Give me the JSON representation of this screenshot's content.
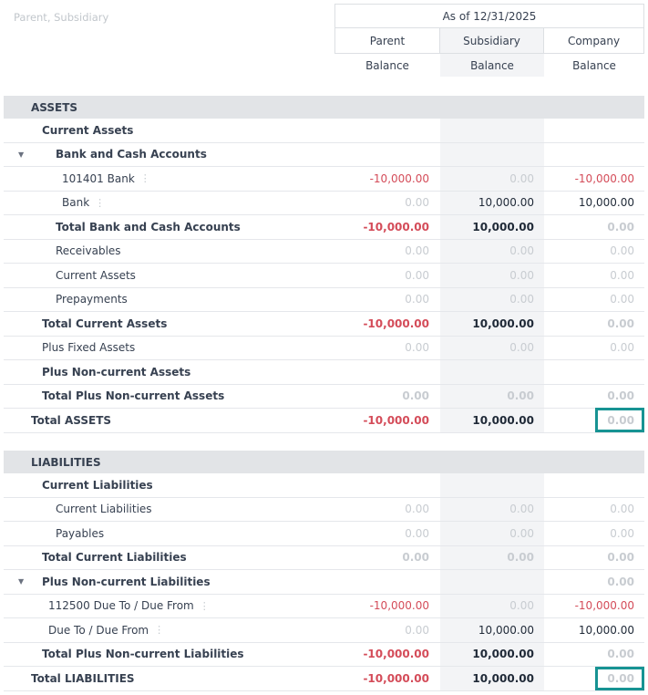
{
  "filter": "Parent, Subsidiary",
  "header": {
    "period": "As of 12/31/2025",
    "columns": [
      "Parent",
      "Subsidiary",
      "Company"
    ],
    "subheaders": [
      "Balance",
      "Balance",
      "Balance"
    ]
  },
  "assets": {
    "title": "ASSETS",
    "rows": [
      {
        "label": "Current Assets",
        "indent": 1,
        "bold": true,
        "caret": false,
        "menu": false,
        "values": [
          "",
          "",
          ""
        ],
        "styles": [
          "",
          "",
          ""
        ]
      },
      {
        "label": "Bank and Cash Accounts",
        "indent": 2,
        "bold": true,
        "caret": true,
        "menu": false,
        "values": [
          "",
          "",
          ""
        ],
        "styles": [
          "",
          "",
          ""
        ]
      },
      {
        "label": "101401 Bank",
        "indent": 3,
        "bold": false,
        "caret": false,
        "menu": true,
        "values": [
          "-10,000.00",
          "0.00",
          "-10,000.00"
        ],
        "styles": [
          "neg",
          "muted",
          "neg"
        ]
      },
      {
        "label": "Bank",
        "indent": 4,
        "bold": false,
        "caret": false,
        "menu": true,
        "values": [
          "0.00",
          "10,000.00",
          "10,000.00"
        ],
        "styles": [
          "muted",
          "dark",
          "dark"
        ]
      },
      {
        "label": "Total Bank and Cash Accounts",
        "indent": 2,
        "bold": true,
        "caret": false,
        "menu": false,
        "values": [
          "-10,000.00",
          "10,000.00",
          "0.00"
        ],
        "styles": [
          "neg",
          "dark",
          "muted"
        ]
      },
      {
        "label": "Receivables",
        "indent": 2,
        "bold": false,
        "caret": false,
        "menu": false,
        "values": [
          "0.00",
          "0.00",
          "0.00"
        ],
        "styles": [
          "muted",
          "muted",
          "muted"
        ]
      },
      {
        "label": "Current Assets",
        "indent": 2,
        "bold": false,
        "caret": false,
        "menu": false,
        "values": [
          "0.00",
          "0.00",
          "0.00"
        ],
        "styles": [
          "muted",
          "muted",
          "muted"
        ]
      },
      {
        "label": "Prepayments",
        "indent": 2,
        "bold": false,
        "caret": false,
        "menu": false,
        "values": [
          "0.00",
          "0.00",
          "0.00"
        ],
        "styles": [
          "muted",
          "muted",
          "muted"
        ]
      },
      {
        "label": "Total Current Assets",
        "indent": 1,
        "bold": true,
        "caret": false,
        "menu": false,
        "values": [
          "-10,000.00",
          "10,000.00",
          "0.00"
        ],
        "styles": [
          "neg",
          "dark",
          "muted"
        ]
      },
      {
        "label": "Plus Fixed Assets",
        "indent": 1,
        "bold": false,
        "caret": false,
        "menu": false,
        "values": [
          "0.00",
          "0.00",
          "0.00"
        ],
        "styles": [
          "muted",
          "muted",
          "muted"
        ]
      },
      {
        "label": "Plus Non-current Assets",
        "indent": 1,
        "bold": true,
        "caret": false,
        "menu": false,
        "values": [
          "",
          "",
          ""
        ],
        "styles": [
          "",
          "",
          ""
        ]
      },
      {
        "label": "Total Plus Non-current Assets",
        "indent": 1,
        "bold": true,
        "caret": false,
        "menu": false,
        "values": [
          "0.00",
          "0.00",
          "0.00"
        ],
        "styles": [
          "muted",
          "muted",
          "muted"
        ]
      },
      {
        "label": "Total ASSETS",
        "indent": 0,
        "bold": true,
        "caret": false,
        "menu": false,
        "values": [
          "-10,000.00",
          "10,000.00",
          "0.00"
        ],
        "styles": [
          "neg",
          "dark",
          "muted"
        ]
      }
    ]
  },
  "liabilities": {
    "title": "LIABILITIES",
    "rows": [
      {
        "label": "Current Liabilities",
        "indent": 1,
        "bold": true,
        "caret": false,
        "menu": false,
        "values": [
          "",
          "",
          ""
        ],
        "styles": [
          "",
          "",
          ""
        ]
      },
      {
        "label": "Current Liabilities",
        "indent": 2,
        "bold": false,
        "caret": false,
        "menu": false,
        "values": [
          "0.00",
          "0.00",
          "0.00"
        ],
        "styles": [
          "muted",
          "muted",
          "muted"
        ]
      },
      {
        "label": "Payables",
        "indent": 2,
        "bold": false,
        "caret": false,
        "menu": false,
        "values": [
          "0.00",
          "0.00",
          "0.00"
        ],
        "styles": [
          "muted",
          "muted",
          "muted"
        ]
      },
      {
        "label": "Total Current Liabilities",
        "indent": 1,
        "bold": true,
        "caret": false,
        "menu": false,
        "values": [
          "0.00",
          "0.00",
          "0.00"
        ],
        "styles": [
          "muted",
          "muted",
          "muted"
        ]
      },
      {
        "label": "Plus Non-current Liabilities",
        "indent": 1,
        "bold": true,
        "caret": true,
        "menu": false,
        "values": [
          "",
          "",
          "0.00"
        ],
        "styles": [
          "",
          "",
          "muted"
        ]
      },
      {
        "label": "112500 Due To / Due From",
        "indent": 5,
        "bold": false,
        "caret": false,
        "menu": true,
        "values": [
          "-10,000.00",
          "0.00",
          "-10,000.00"
        ],
        "styles": [
          "neg",
          "muted",
          "neg"
        ]
      },
      {
        "label": "Due To / Due From",
        "indent": 5,
        "bold": false,
        "caret": false,
        "menu": true,
        "values": [
          "0.00",
          "10,000.00",
          "10,000.00"
        ],
        "styles": [
          "muted",
          "dark",
          "dark"
        ]
      },
      {
        "label": "Total Plus Non-current Liabilities",
        "indent": 1,
        "bold": true,
        "caret": false,
        "menu": false,
        "values": [
          "-10,000.00",
          "10,000.00",
          "0.00"
        ],
        "styles": [
          "neg",
          "dark",
          "muted"
        ]
      },
      {
        "label": "Total LIABILITIES",
        "indent": 0,
        "bold": true,
        "caret": false,
        "menu": false,
        "values": [
          "-10,000.00",
          "10,000.00",
          "0.00"
        ],
        "styles": [
          "neg",
          "dark",
          "muted"
        ]
      }
    ]
  },
  "colors": {
    "negative": "#d44c59",
    "muted": "#c8ccd1",
    "highlight": "#179393",
    "section_bg": "#e2e4e7",
    "subsidiary_bg": "#f3f4f6"
  }
}
